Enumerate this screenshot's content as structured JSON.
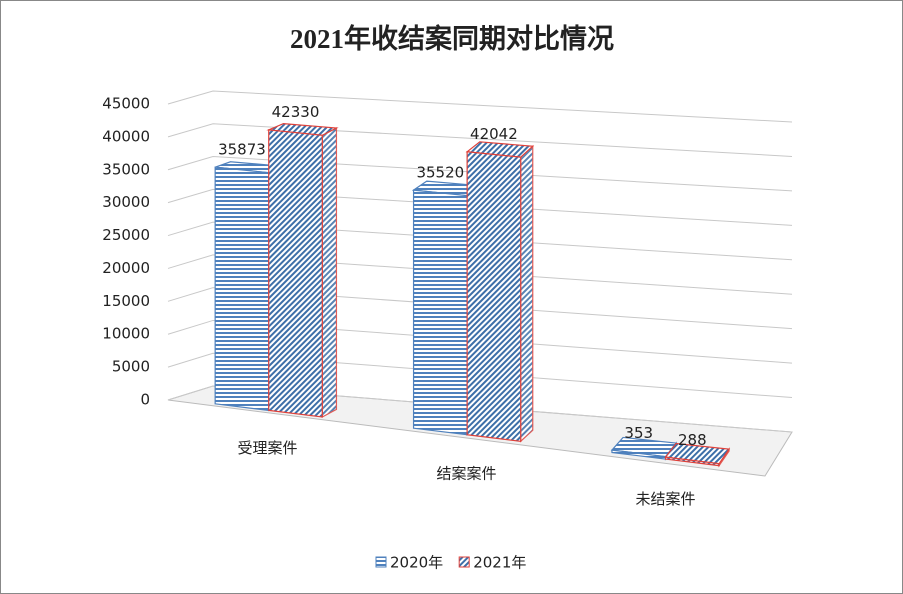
{
  "chart_data": {
    "type": "bar3d",
    "title": "2021年收结案同期对比情况",
    "categories": [
      "受理案件",
      "结案案件",
      "未结案件"
    ],
    "series": [
      {
        "name": "2020年",
        "color": "#4f81bd",
        "values": [
          35873,
          35520,
          353
        ]
      },
      {
        "name": "2021年",
        "color": "#e0413a",
        "values": [
          42330,
          42042,
          288
        ]
      }
    ],
    "ylim": [
      0,
      45000
    ],
    "yticks": [
      0,
      5000,
      10000,
      15000,
      20000,
      25000,
      30000,
      35000,
      40000,
      45000
    ],
    "grid": true,
    "legend": "bottom"
  }
}
